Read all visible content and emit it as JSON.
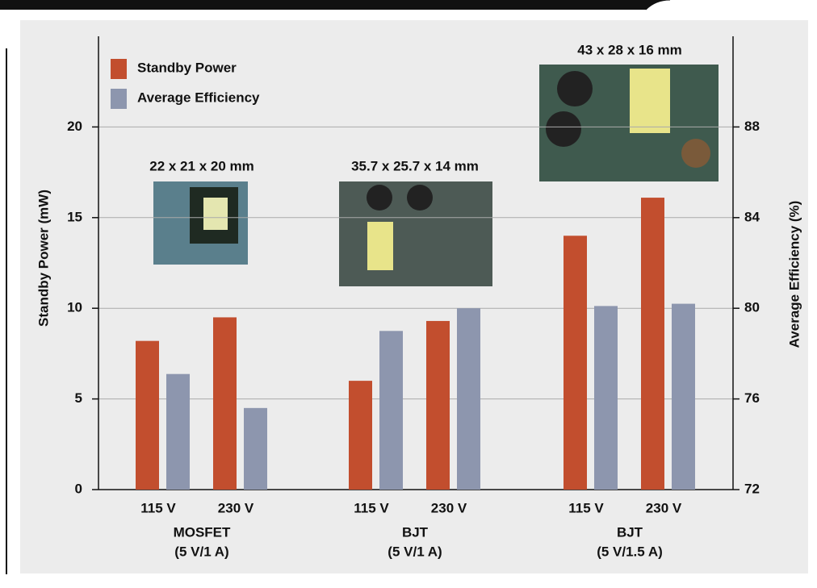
{
  "chart_data": {
    "type": "bar",
    "categories": [
      "115 V",
      "230 V",
      "115 V",
      "230 V",
      "115 V",
      "230 V"
    ],
    "groups": [
      {
        "name": "MOSFET",
        "spec": "(5 V/1 A)",
        "size": "22 x 21 x 20 mm"
      },
      {
        "name": "BJT",
        "spec": "(5 V/1 A)",
        "size": "35.7 x 25.7 x 14 mm"
      },
      {
        "name": "BJT",
        "spec": "(5 V/1.5 A)",
        "size": "43 x 28 x 16 mm"
      }
    ],
    "series": [
      {
        "name": "Standby Power",
        "color": "#c24e2e",
        "values": [
          8.2,
          9.5,
          6.0,
          9.3,
          14.0,
          16.1
        ]
      },
      {
        "name": "Average Efficiency",
        "color": "#8d96ae",
        "axis": "y2",
        "values": [
          77.1,
          75.6,
          79.0,
          80.0,
          80.1,
          80.2
        ]
      }
    ],
    "ylabel": "Standby Power (mW)",
    "y2label": "Average Efficiency (%)",
    "ylim": [
      0,
      25
    ],
    "yticks": [
      0,
      5,
      10,
      15,
      20
    ],
    "y2lim": [
      72,
      92
    ],
    "y2ticks": [
      72,
      76,
      80,
      84,
      88
    ],
    "grid": true,
    "legend": "upper left"
  }
}
